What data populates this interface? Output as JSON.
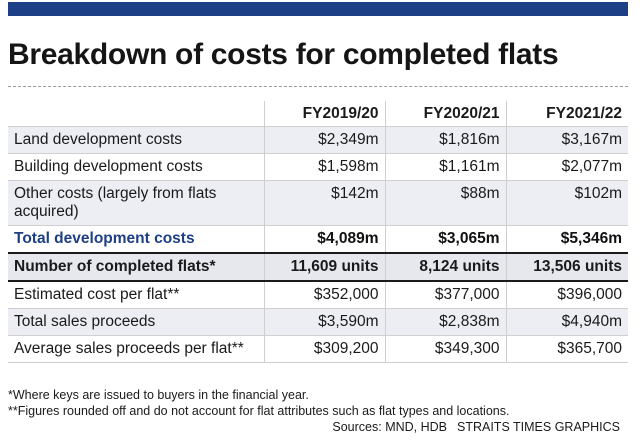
{
  "title": "Breakdown of costs for completed flats",
  "table": {
    "columns": [
      "",
      "FY2019/20",
      "FY2020/21",
      "FY2021/22"
    ],
    "rows": [
      {
        "label": "Land development costs",
        "values": [
          "$2,349m",
          "$1,816m",
          "$3,167m"
        ]
      },
      {
        "label": "Building development costs",
        "values": [
          "$1,598m",
          "$1,161m",
          "$2,077m"
        ]
      },
      {
        "label": "Other costs (largely from flats acquired)",
        "values": [
          "$142m",
          "$88m",
          "$102m"
        ]
      },
      {
        "label": "Total development costs",
        "values": [
          "$4,089m",
          "$3,065m",
          "$5,346m"
        ]
      },
      {
        "label": "Number of completed flats*",
        "values": [
          "11,609 units",
          "8,124 units",
          "13,506 units"
        ]
      },
      {
        "label": "Estimated cost per flat**",
        "values": [
          "$352,000",
          "$377,000",
          "$396,000"
        ]
      },
      {
        "label": "Total sales proceeds",
        "values": [
          "$3,590m",
          "$2,838m",
          "$4,940m"
        ]
      },
      {
        "label": "Average sales proceeds per flat**",
        "values": [
          "$309,200",
          "$349,300",
          "$365,700"
        ]
      }
    ]
  },
  "notes": {
    "note1": "*Where keys are issued to buyers in the financial year.",
    "note2": "**Figures rounded off and do not account for flat attributes such as flat types and locations.",
    "sources": "Sources: MND, HDB",
    "credit": "STRAITS TIMES GRAPHICS"
  },
  "colors": {
    "accent": "#1d3f86",
    "row_shade": "#eceef3"
  }
}
